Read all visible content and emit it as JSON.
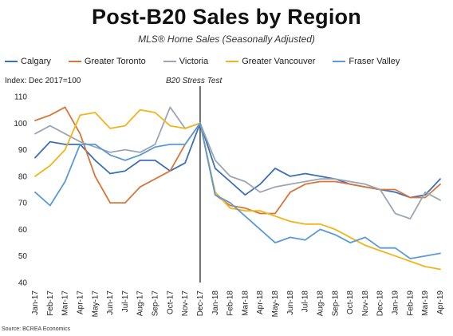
{
  "chart_data": {
    "type": "line",
    "title": "Post-B20 Sales by Region",
    "subtitle": "MLS® Home Sales (Seasonally Adjusted)",
    "ylabel": "Index: Dec 2017=100",
    "source": "Source: BCREA Economics",
    "annotation": "B20 Stress Test",
    "annotation_x": "Dec-17",
    "ylim": [
      40,
      110
    ],
    "yticks": [
      40,
      50,
      60,
      70,
      80,
      90,
      100,
      110
    ],
    "grid": false,
    "legend_position": "top",
    "categories": [
      "Jan-17",
      "Feb-17",
      "Mar-17",
      "Apr-17",
      "May-17",
      "Jun-17",
      "Jul-17",
      "Aug-17",
      "Sep-17",
      "Oct-17",
      "Nov-17",
      "Dec-17",
      "Jan-18",
      "Feb-18",
      "Mar-18",
      "Apr-18",
      "May-18",
      "Jun-18",
      "Jul-18",
      "Aug-18",
      "Sep-18",
      "Oct-18",
      "Nov-18",
      "Dec-18",
      "Jan-19",
      "Feb-19",
      "Mar-19",
      "Apr-19"
    ],
    "series": [
      {
        "name": "Calgary",
        "color": "#3b6fb6",
        "values": [
          87,
          93,
          92,
          92,
          86,
          81,
          82,
          86,
          86,
          82,
          85,
          100,
          83,
          78,
          73,
          77,
          83,
          80,
          81,
          80,
          79,
          77,
          76,
          75,
          74,
          72,
          73,
          79
        ]
      },
      {
        "name": "Greater Toronto",
        "color": "#d8763a",
        "values": [
          101,
          103,
          106,
          96,
          80,
          70,
          70,
          76,
          79,
          82,
          92,
          100,
          73,
          69,
          68,
          66,
          66,
          74,
          77,
          78,
          78,
          77,
          76,
          75,
          75,
          72,
          72,
          77
        ]
      },
      {
        "name": "Victoria",
        "color": "#9aa6b4",
        "values": [
          96,
          99,
          96,
          93,
          91,
          89,
          90,
          89,
          92,
          106,
          98,
          100,
          86,
          80,
          78,
          74,
          76,
          77,
          78,
          79,
          79,
          78,
          77,
          75,
          66,
          64,
          74,
          71
        ]
      },
      {
        "name": "Greater Vancouver",
        "color": "#f1b51c",
        "values": [
          80,
          84,
          90,
          103,
          104,
          98,
          99,
          105,
          104,
          99,
          98,
          100,
          74,
          68,
          67,
          67,
          65,
          63,
          62,
          62,
          60,
          57,
          54,
          52,
          50,
          48,
          46,
          45
        ]
      },
      {
        "name": "Fraser Valley",
        "color": "#5b9bd5",
        "values": [
          74,
          69,
          78,
          92,
          92,
          88,
          86,
          88,
          91,
          92,
          92,
          100,
          73,
          70,
          65,
          60,
          55,
          57,
          56,
          60,
          58,
          55,
          57,
          53,
          53,
          49,
          50,
          51
        ]
      }
    ]
  }
}
